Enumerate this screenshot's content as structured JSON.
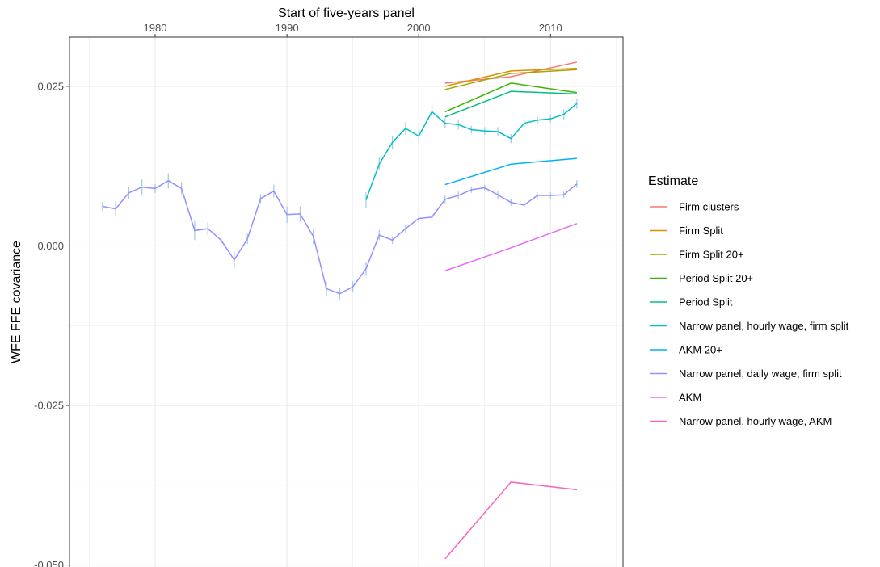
{
  "chart_data": {
    "type": "line",
    "title": "",
    "xlabel": "Start of five-years panel",
    "ylabel": "WFE FFE covariance",
    "x_axis_position": "top",
    "xlim": [
      1973.5,
      2015.5
    ],
    "ylim": [
      -0.0503,
      0.0327
    ],
    "x_ticks": [
      1980,
      1990,
      2000,
      2010
    ],
    "x_tick_labels": [
      "1980",
      "1990",
      "2000",
      "2010"
    ],
    "y_ticks": [
      0.025,
      0.0,
      -0.025,
      -0.05
    ],
    "y_tick_labels": [
      "0.025",
      "0.000",
      "-0.025",
      "-0.050"
    ],
    "grid": true,
    "legend_position": "right",
    "legend_title": "Estimate",
    "series": [
      {
        "name": "Firm clusters",
        "color": "#F8766D",
        "x": [
          2002,
          2007,
          2012
        ],
        "y": [
          0.0255,
          0.0265,
          0.0288
        ]
      },
      {
        "name": "Firm Split",
        "color": "#D89000",
        "x": [
          2002,
          2007,
          2012
        ],
        "y": [
          0.025,
          0.0274,
          0.0278
        ]
      },
      {
        "name": "Firm Split 20+",
        "color": "#A3A500",
        "x": [
          2002,
          2007,
          2012
        ],
        "y": [
          0.0245,
          0.027,
          0.0276
        ]
      },
      {
        "name": "Period Split 20+",
        "color": "#39B600",
        "x": [
          2002,
          2007,
          2012
        ],
        "y": [
          0.021,
          0.0255,
          0.024
        ]
      },
      {
        "name": "Period Split",
        "color": "#00BF7D",
        "x": [
          2002,
          2007,
          2012
        ],
        "y": [
          0.0202,
          0.0242,
          0.0238
        ]
      },
      {
        "name": "Narrow panel, hourly wage, firm split",
        "color": "#00BFC4",
        "x": [
          1996,
          1997,
          1998,
          1999,
          2000,
          2001,
          2002,
          2003,
          2004,
          2005,
          2006,
          2007,
          2008,
          2009,
          2010,
          2011,
          2012
        ],
        "y": [
          0.0072,
          0.0128,
          0.0162,
          0.0184,
          0.0172,
          0.021,
          0.0192,
          0.019,
          0.0182,
          0.018,
          0.0179,
          0.0168,
          0.0192,
          0.0197,
          0.0199,
          0.0206,
          0.0223
        ],
        "error": [
          0.0012,
          0.001,
          0.001,
          0.001,
          0.001,
          0.001,
          0.0008,
          0.0008,
          0.0006,
          0.0006,
          0.0007,
          0.0007,
          0.0006,
          0.0006,
          0.0006,
          0.0008,
          0.0008
        ]
      },
      {
        "name": "AKM 20+",
        "color": "#00B0F6",
        "x": [
          2002,
          2007,
          2012
        ],
        "y": [
          0.0096,
          0.0128,
          0.0137
        ]
      },
      {
        "name": "Narrow panel, daily wage, firm split",
        "color": "#9590FF",
        "x": [
          1976,
          1977,
          1978,
          1979,
          1980,
          1981,
          1982,
          1983,
          1984,
          1985,
          1986,
          1987,
          1988,
          1989,
          1990,
          1991,
          1992,
          1993,
          1994,
          1995,
          1996,
          1997,
          1998,
          1999,
          2000,
          2001,
          2002,
          2003,
          2004,
          2005,
          2006,
          2007,
          2008,
          2009,
          2010,
          2011,
          2012
        ],
        "y": [
          0.0062,
          0.0058,
          0.0083,
          0.0092,
          0.009,
          0.0102,
          0.009,
          0.0024,
          0.0027,
          0.0009,
          -0.0022,
          0.0011,
          0.0074,
          0.0086,
          0.0049,
          0.005,
          0.0015,
          -0.0067,
          -0.0075,
          -0.0064,
          -0.0036,
          0.0017,
          0.0009,
          0.0027,
          0.0043,
          0.0045,
          0.0073,
          0.0079,
          0.0088,
          0.0091,
          0.008,
          0.0068,
          0.0064,
          0.0079,
          0.0079,
          0.008,
          0.0097
        ],
        "error": [
          0.0007,
          0.0012,
          0.0009,
          0.0012,
          0.0007,
          0.0012,
          0.001,
          0.0015,
          0.001,
          0.0006,
          0.0013,
          0.0008,
          0.0007,
          0.001,
          0.0013,
          0.0012,
          0.0012,
          0.0011,
          0.0009,
          0.0009,
          0.0011,
          0.0008,
          0.0006,
          0.0006,
          0.0006,
          0.0006,
          0.0006,
          0.0006,
          0.0005,
          0.0005,
          0.0006,
          0.0005,
          0.0005,
          0.0005,
          0.0005,
          0.0005,
          0.0006
        ]
      },
      {
        "name": "AKM",
        "color": "#E76BF3",
        "x": [
          2002,
          2007,
          2012
        ],
        "y": [
          -0.0039,
          -0.0003,
          0.0035
        ]
      },
      {
        "name": "Narrow panel, hourly wage, AKM",
        "color": "#FF62BC",
        "x": [
          2002,
          2007,
          2012
        ],
        "y": [
          -0.049,
          -0.037,
          -0.0382
        ]
      }
    ]
  }
}
